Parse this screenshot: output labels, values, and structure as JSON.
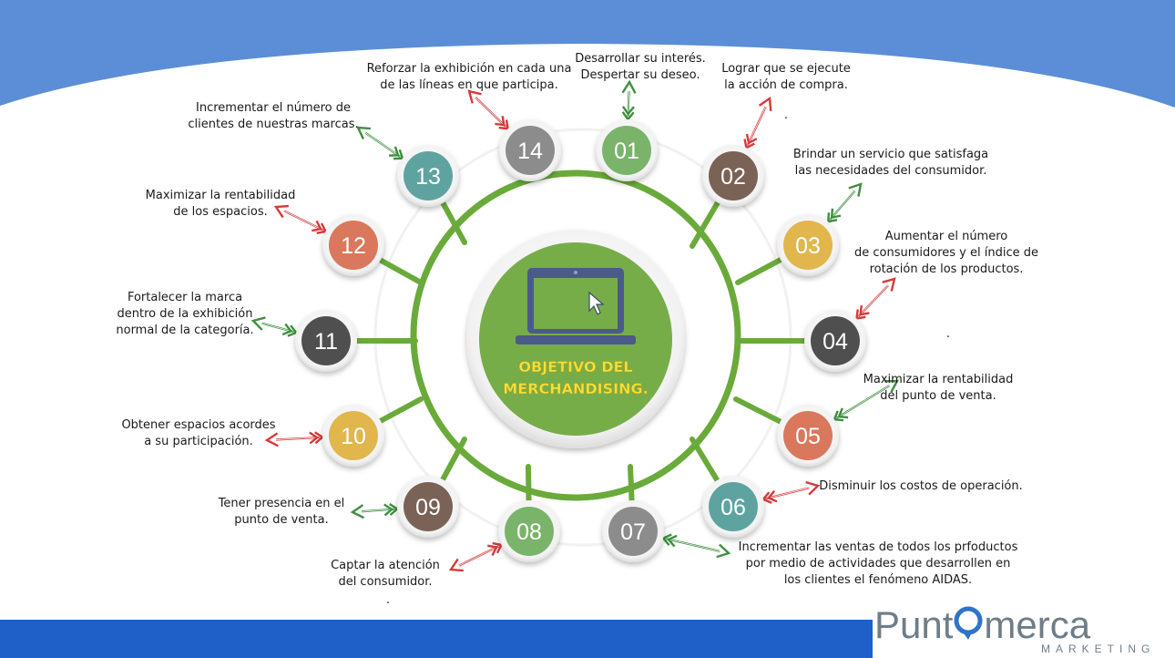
{
  "colors": {
    "top_band": "#5b8ed6",
    "bottom_band": "#1f5fc8",
    "connector": "#6aaa3a",
    "center_fill": "#76ad48",
    "center_text": "#f4e03a",
    "laptop": "#4a5a8a",
    "arrow_green": "#3f8f3f",
    "arrow_red": "#d63a3a",
    "logo_text": "#6f7d88",
    "logo_accent": "#2f74c9"
  },
  "center": {
    "icon": "laptop-cursor-icon",
    "title_line1": "OBJETIVO DEL",
    "title_line2": "MERCHANDISING."
  },
  "items": [
    {
      "number": "01",
      "label": "Desarrollar su interés.\nDespertar su deseo.",
      "color": "#7ab36a",
      "arrow": "green"
    },
    {
      "number": "02",
      "label": "Lograr que se ejecute\nla acción de compra.",
      "color": "#7a6256",
      "arrow": "red"
    },
    {
      "number": "03",
      "label": "Brindar un servicio que satisfaga\nlas necesidades del consumidor.",
      "color": "#e1b64c",
      "arrow": "green"
    },
    {
      "number": "04",
      "label": "Aumentar el número\nde consumidores y el índice de\nrotación de los productos.",
      "color": "#4f4f4f",
      "arrow": "red"
    },
    {
      "number": "05",
      "label": "Maximizar la rentabilidad\ndel punto de venta.",
      "color": "#d9785c",
      "arrow": "green"
    },
    {
      "number": "06",
      "label": "Disminuir los costos de operación.",
      "color": "#5fa3a0",
      "arrow": "red"
    },
    {
      "number": "07",
      "label": "Incrementar las ventas de todos los prfoductos\npor medio de actividades que desarrollen en\nlos clientes el fenómeno AIDAS.",
      "color": "#8c8c8c",
      "arrow": "green"
    },
    {
      "number": "08",
      "label": "Captar la atención\ndel consumidor.",
      "color": "#7ab36a",
      "arrow": "red"
    },
    {
      "number": "09",
      "label": "Tener presencia en el\npunto de venta.",
      "color": "#7a6256",
      "arrow": "green"
    },
    {
      "number": "10",
      "label": "Obtener espacios acordes\na su participación.",
      "color": "#e1b64c",
      "arrow": "red"
    },
    {
      "number": "11",
      "label": "Fortalecer la marca\ndentro de la exhibición\nnormal de la categoría.",
      "color": "#4f4f4f",
      "arrow": "green"
    },
    {
      "number": "12",
      "label": "Maximizar la rentabilidad\nde los espacios.",
      "color": "#d9785c",
      "arrow": "red"
    },
    {
      "number": "13",
      "label": "Incrementar el número de\nclientes de nuestras marcas.",
      "color": "#5fa3a0",
      "arrow": "green"
    },
    {
      "number": "14",
      "label": "Reforzar la exhibición en cada una\nde las líneas en que participa.",
      "color": "#8c8c8c",
      "arrow": "red"
    }
  ],
  "stray_dots": [
    ".",
    ".",
    "."
  ],
  "logo": {
    "text_left": "Punt",
    "text_right": "merca",
    "subtitle": "MARKETING"
  }
}
